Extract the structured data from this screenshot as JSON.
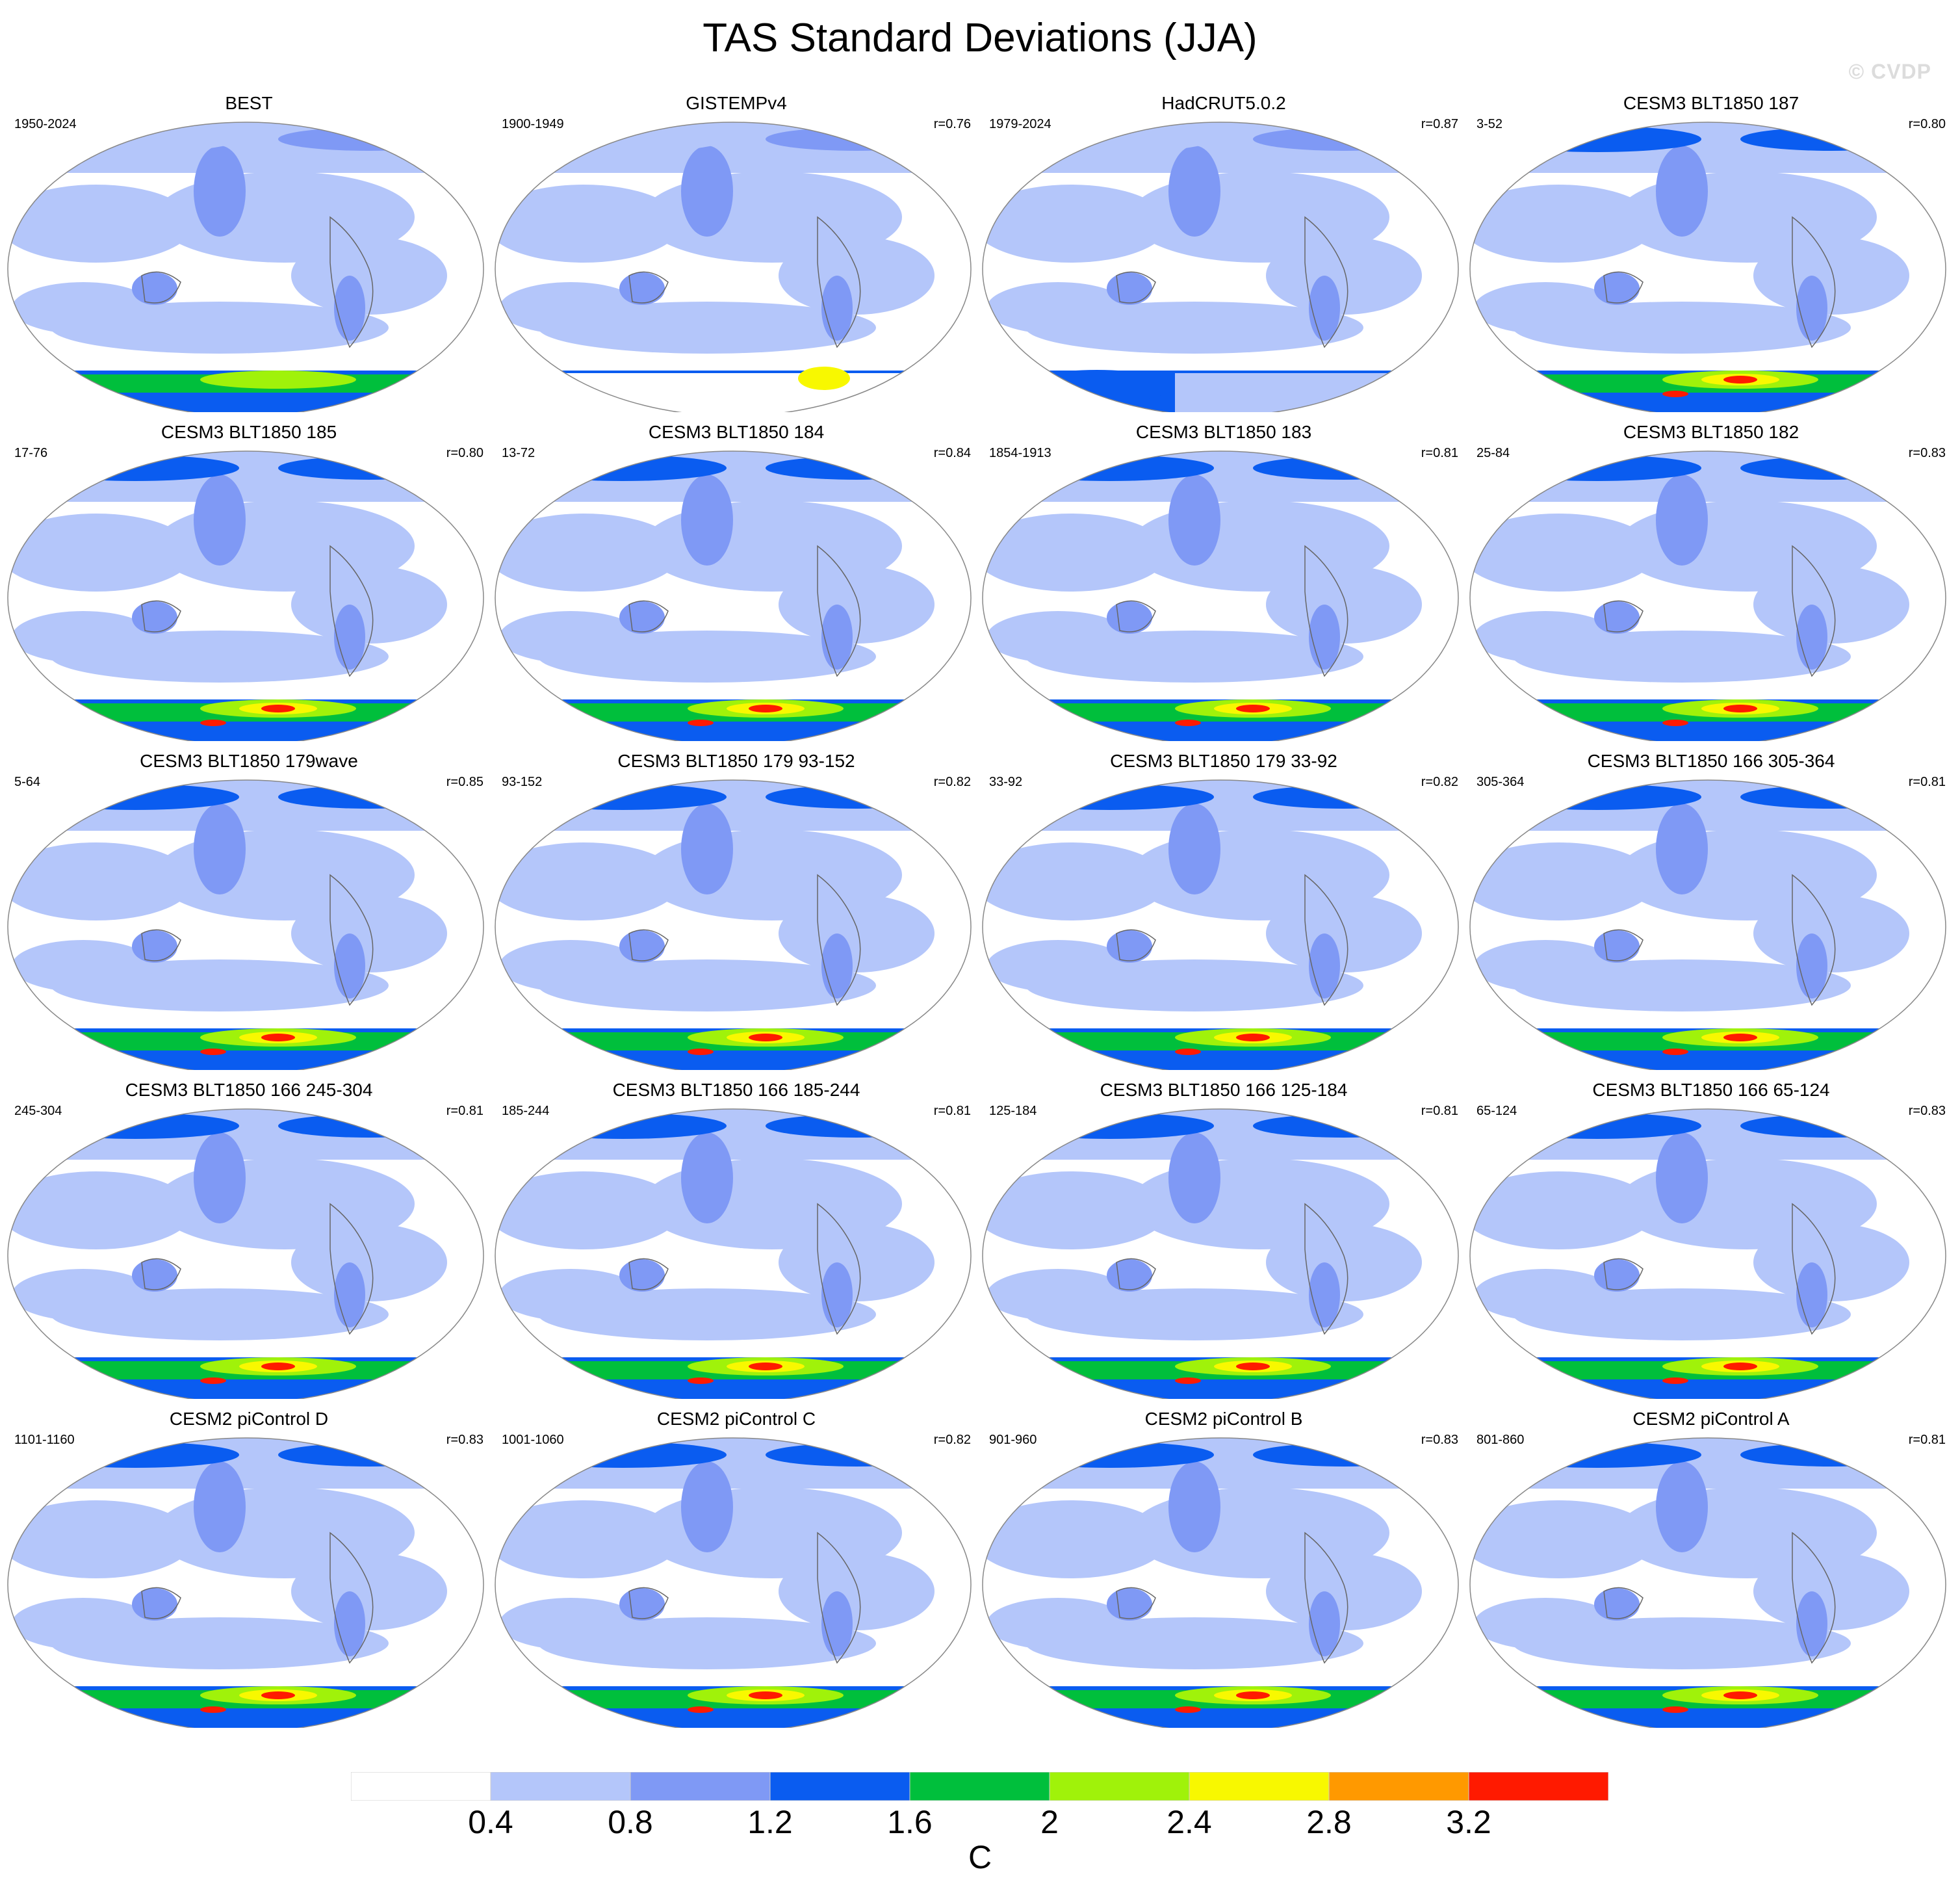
{
  "title": "TAS Standard Deviations (JJA)",
  "watermark": "© CVDP",
  "panels": [
    {
      "title": "BEST",
      "years": "1950-2024",
      "r": ""
    },
    {
      "title": "GISTEMPv4",
      "years": "1900-1949",
      "r": "r=0.76"
    },
    {
      "title": "HadCRUT5.0.2",
      "years": "1979-2024",
      "r": "r=0.87"
    },
    {
      "title": "CESM3 BLT1850 187",
      "years": "3-52",
      "r": "r=0.80"
    },
    {
      "title": "CESM3 BLT1850 185",
      "years": "17-76",
      "r": "r=0.80"
    },
    {
      "title": "CESM3 BLT1850 184",
      "years": "13-72",
      "r": "r=0.84"
    },
    {
      "title": "CESM3 BLT1850 183",
      "years": "1854-1913",
      "r": "r=0.81"
    },
    {
      "title": "CESM3 BLT1850 182",
      "years": "25-84",
      "r": "r=0.83"
    },
    {
      "title": "CESM3 BLT1850 179wave",
      "years": "5-64",
      "r": "r=0.85"
    },
    {
      "title": "CESM3 BLT1850 179 93-152",
      "years": "93-152",
      "r": "r=0.82"
    },
    {
      "title": "CESM3 BLT1850 179 33-92",
      "years": "33-92",
      "r": "r=0.82"
    },
    {
      "title": "CESM3 BLT1850 166 305-364",
      "years": "305-364",
      "r": "r=0.81"
    },
    {
      "title": "CESM3 BLT1850 166 245-304",
      "years": "245-304",
      "r": "r=0.81"
    },
    {
      "title": "CESM3 BLT1850 166 185-244",
      "years": "185-244",
      "r": "r=0.81"
    },
    {
      "title": "CESM3 BLT1850 166 125-184",
      "years": "125-184",
      "r": "r=0.81"
    },
    {
      "title": "CESM3 BLT1850 166 65-124",
      "years": "65-124",
      "r": "r=0.83"
    },
    {
      "title": "CESM2 piControl D",
      "years": "1101-1160",
      "r": "r=0.83"
    },
    {
      "title": "CESM2 piControl C",
      "years": "1001-1060",
      "r": "r=0.82"
    },
    {
      "title": "CESM2 piControl B",
      "years": "901-960",
      "r": "r=0.83"
    },
    {
      "title": "CESM2 piControl A",
      "years": "801-860",
      "r": "r=0.81"
    }
  ],
  "colorbar": {
    "colors": [
      "#ffffff",
      "#b4c6fa",
      "#7f99f5",
      "#0a5cf0",
      "#00bf3c",
      "#a0f20a",
      "#f8f800",
      "#ff9900",
      "#ff1a00"
    ],
    "labels": [
      "0.4",
      "0.8",
      "1.2",
      "1.6",
      "2",
      "2.4",
      "2.8",
      "3.2"
    ],
    "units": "C"
  }
}
